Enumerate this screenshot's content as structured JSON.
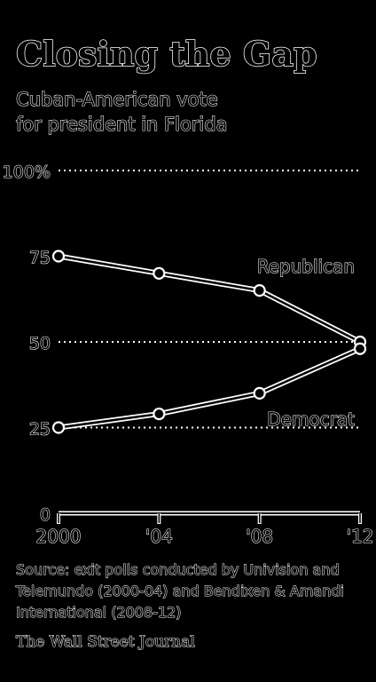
{
  "title": "Closing the Gap",
  "subtitle_lines": [
    "Cuban-American vote",
    "for president in Florida"
  ],
  "source": "Source: exit polls conducted by Univision and Telemundo (2000-04) and Bendixen & Amandi International (2008-12)",
  "credit": "The Wall Street Journal",
  "chart_data": {
    "type": "line",
    "title": "Closing the Gap",
    "subtitle": "Cuban-American vote for president in Florida",
    "x": [
      2000,
      2004,
      2008,
      2012
    ],
    "xticklabels": [
      "2000",
      "'04",
      "'08",
      "'12"
    ],
    "yticks": [
      0,
      25,
      50,
      75,
      100
    ],
    "yticklabels": [
      "0",
      "25",
      "50",
      "75",
      "100%"
    ],
    "ylim": [
      0,
      100
    ],
    "gridlines_at": [
      25,
      50,
      100
    ],
    "series": [
      {
        "name": "Republican",
        "values": [
          75,
          70,
          65,
          50
        ]
      },
      {
        "name": "Democrat",
        "values": [
          25,
          29,
          35,
          48
        ]
      }
    ]
  }
}
